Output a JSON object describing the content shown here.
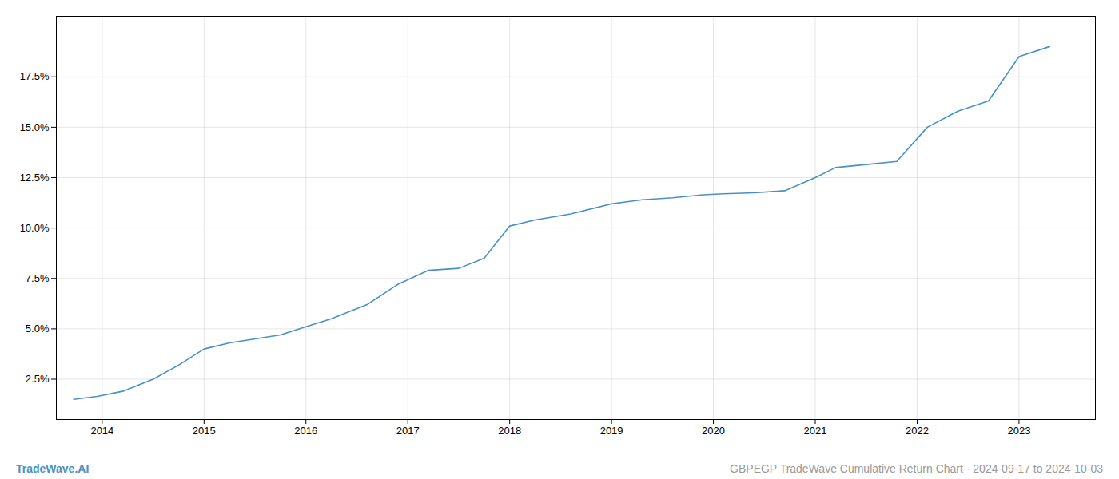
{
  "chart_data": {
    "type": "line",
    "title": "GBPEGP TradeWave Cumulative Return Chart - 2024-09-17 to 2024-10-03",
    "annotations": [
      {
        "text": "TradeWave.AI",
        "color": "#4a90c4"
      }
    ],
    "x": [
      2013.72,
      2013.95,
      2014.2,
      2014.5,
      2014.75,
      2015.0,
      2015.25,
      2015.5,
      2015.75,
      2016.0,
      2016.25,
      2016.6,
      2016.9,
      2017.2,
      2017.5,
      2017.75,
      2018.0,
      2018.25,
      2018.6,
      2019.0,
      2019.3,
      2019.6,
      2019.9,
      2020.1,
      2020.4,
      2020.7,
      2021.0,
      2021.2,
      2021.5,
      2021.8,
      2022.1,
      2022.4,
      2022.7,
      2023.0,
      2023.3
    ],
    "values": [
      1.5,
      1.65,
      1.9,
      2.5,
      3.2,
      4.0,
      4.3,
      4.5,
      4.7,
      5.1,
      5.5,
      6.2,
      7.2,
      7.9,
      8.0,
      8.5,
      10.1,
      10.4,
      10.7,
      11.2,
      11.4,
      11.5,
      11.65,
      11.7,
      11.75,
      11.85,
      12.5,
      13.0,
      13.15,
      13.3,
      15.0,
      15.8,
      16.3,
      18.5,
      19.0
    ],
    "color": "#4a90c4",
    "xlim": [
      2013.55,
      2023.75
    ],
    "xticks": [
      2014,
      2015,
      2016,
      2017,
      2018,
      2019,
      2020,
      2021,
      2022,
      2023
    ],
    "ylim": [
      0.5,
      20.5
    ],
    "yticks": [
      {
        "value": 2.5,
        "label": "2.5%"
      },
      {
        "value": 5.0,
        "label": "5.0%"
      },
      {
        "value": 7.5,
        "label": "7.5%"
      },
      {
        "value": 10.0,
        "label": "10.0%"
      },
      {
        "value": 12.5,
        "label": "12.5%"
      },
      {
        "value": 15.0,
        "label": "15.0%"
      },
      {
        "value": 17.5,
        "label": "17.5%"
      }
    ],
    "grid": true
  }
}
